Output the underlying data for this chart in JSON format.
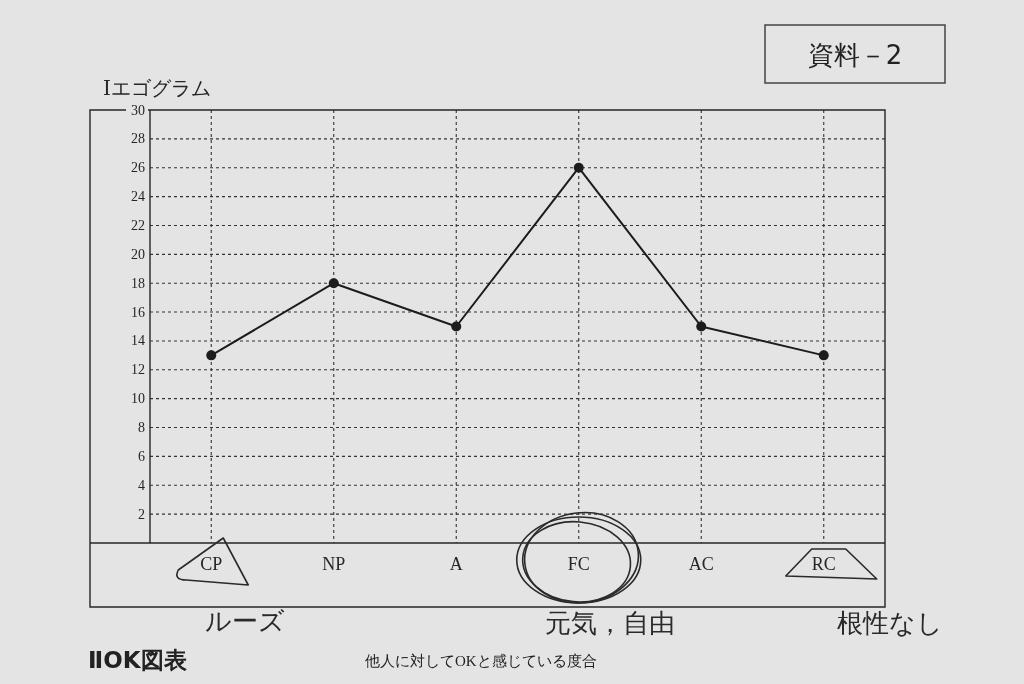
{
  "chart_data": {
    "type": "line",
    "title": "Ⅰエゴグラム",
    "categories": [
      "CP",
      "NP",
      "A",
      "FC",
      "AC",
      "RC"
    ],
    "values": [
      13,
      18,
      15,
      26,
      15,
      13
    ],
    "color": "#1c1c1c",
    "ylim": [
      0,
      30
    ],
    "yticks": [
      2,
      4,
      6,
      8,
      10,
      12,
      14,
      16,
      18,
      20,
      22,
      24,
      26,
      28,
      30
    ],
    "grid": true,
    "marker": "circle",
    "line_style": "solid",
    "annotations": [
      "資料－2",
      "ルーズ",
      "元気，自由",
      "根性なし",
      "ⅡOK図表",
      "他人に対してOKと感じている度合"
    ]
  }
}
